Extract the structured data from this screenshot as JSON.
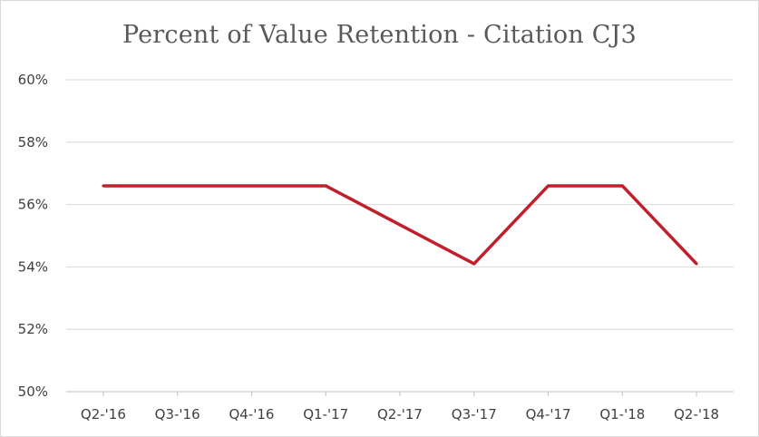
{
  "chart_data": {
    "type": "line",
    "title": "Percent of Value Retention - Citation CJ3",
    "xlabel": "",
    "ylabel": "",
    "categories": [
      "Q2-'16",
      "Q3-'16",
      "Q4-'16",
      "Q1-'17",
      "Q2-'17",
      "Q3-'17",
      "Q4-'17",
      "Q1-'18",
      "Q2-'18"
    ],
    "series": [
      {
        "values": [
          56.6,
          56.6,
          56.6,
          56.6,
          55.35,
          54.1,
          56.6,
          56.6,
          54.1
        ]
      }
    ],
    "ylim": [
      50,
      60
    ],
    "yticks": [
      50,
      52,
      54,
      56,
      58,
      60
    ],
    "ytick_labels": [
      "50%",
      "52%",
      "54%",
      "56%",
      "58%",
      "60%"
    ],
    "grid": true,
    "legend": "none",
    "colors": {
      "line": "#c0202b",
      "grid": "#d9d9d9",
      "axis": "#bfbfbf"
    }
  }
}
